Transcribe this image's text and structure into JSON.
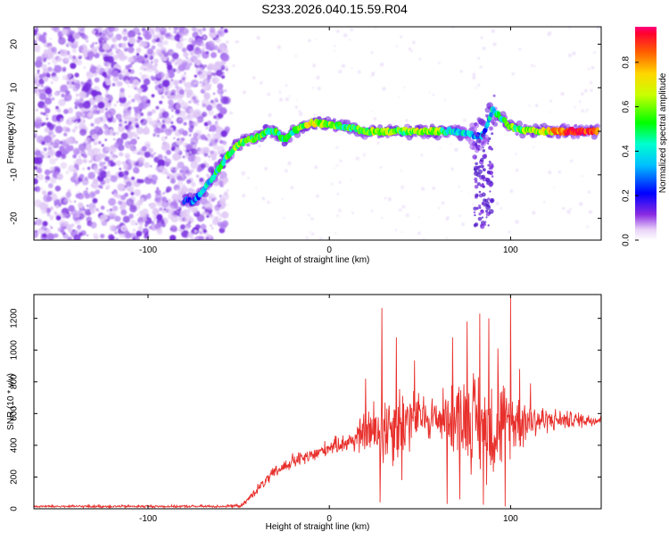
{
  "figure_title": "S233.2026.040.15.59.R04",
  "colors": {
    "signal": "#e8302c",
    "speckle": "#8a2be2",
    "axis": "#000000"
  },
  "chart_data": [
    {
      "type": "heatmap",
      "title": "S233.2026.040.15.59.R04",
      "xlabel": "Height of straight line (km)",
      "ylabel": "Frequency (Hz)",
      "xlim": [
        -163,
        150
      ],
      "ylim": [
        -25,
        24
      ],
      "xticks": [
        -100,
        0,
        100
      ],
      "yticks": [
        -20,
        -10,
        0,
        10,
        20
      ],
      "colorbar": {
        "label": "Normalized spectral amplitude",
        "range": [
          0,
          0.96
        ],
        "ticks": [
          0.0,
          0.2,
          0.4,
          0.6,
          0.8
        ]
      },
      "ridge": {
        "x": [
          -80,
          -75,
          -70,
          -65,
          -60,
          -55,
          -50,
          -45,
          -40,
          -35,
          -30,
          -25,
          -20,
          -15,
          -10,
          0,
          10,
          20,
          30,
          40,
          50,
          60,
          70,
          80,
          85,
          90,
          95,
          100,
          110,
          120,
          130,
          140,
          148
        ],
        "freq": [
          -16,
          -16,
          -14,
          -11,
          -8,
          -5,
          -3,
          -2,
          -1.5,
          0,
          0,
          -2,
          0,
          1,
          2,
          1.5,
          1,
          0,
          0,
          0,
          0,
          0,
          0,
          -1,
          -1,
          5,
          3,
          1,
          0,
          0,
          0,
          0,
          0
        ],
        "amplitude": [
          0.2,
          0.25,
          0.35,
          0.45,
          0.5,
          0.55,
          0.6,
          0.55,
          0.6,
          0.5,
          0.55,
          0.45,
          0.5,
          0.6,
          0.7,
          0.6,
          0.5,
          0.6,
          0.65,
          0.55,
          0.7,
          0.6,
          0.4,
          0.35,
          0.3,
          0.4,
          0.5,
          0.55,
          0.6,
          0.7,
          0.9,
          0.95,
          0.9
        ]
      }
    },
    {
      "type": "line",
      "xlabel": "Height of straight line (km)",
      "ylabel": "SNR (10 * v/v)",
      "xlim": [
        -163,
        150
      ],
      "ylim": [
        0,
        1350
      ],
      "xticks": [
        -100,
        0,
        100
      ],
      "yticks": [
        0,
        200,
        400,
        600,
        800,
        1000,
        1200
      ],
      "series": [
        {
          "name": "SNR",
          "envelope": {
            "x": [
              -163,
              -60,
              -48,
              -40,
              -30,
              -20,
              -10,
              0,
              10,
              20,
              30,
              40,
              50,
              60,
              70,
              80,
              90,
              100,
              110,
              120,
              130,
              140,
              150
            ],
            "mean": [
              15,
              15,
              20,
              120,
              230,
              300,
              330,
              390,
              420,
              470,
              510,
              550,
              580,
              570,
              580,
              560,
              520,
              560,
              560,
              560,
              560,
              560,
              560
            ],
            "spread": [
              8,
              8,
              10,
              30,
              40,
              50,
              50,
              50,
              60,
              150,
              260,
              250,
              150,
              150,
              250,
              320,
              350,
              220,
              150,
              80,
              60,
              50,
              40
            ]
          },
          "spikes": [
            {
              "x": 29,
              "y": 1265
            },
            {
              "x": 37,
              "y": 1080
            },
            {
              "x": 47,
              "y": 935
            },
            {
              "x": 68,
              "y": 1080
            },
            {
              "x": 76,
              "y": 1180
            },
            {
              "x": 83,
              "y": 1230
            },
            {
              "x": 88,
              "y": 1200
            },
            {
              "x": 100,
              "y": 1345
            },
            {
              "x": 105,
              "y": 880
            },
            {
              "x": 20,
              "y": 820
            },
            {
              "x": 93,
              "y": 1010
            },
            {
              "x": 111,
              "y": 790
            }
          ],
          "dips": [
            {
              "x": 28,
              "y": 40
            },
            {
              "x": 65,
              "y": 30
            },
            {
              "x": 72,
              "y": 60
            },
            {
              "x": 85,
              "y": 25
            },
            {
              "x": 97,
              "y": 15
            },
            {
              "x": 40,
              "y": 180
            }
          ]
        }
      ]
    }
  ]
}
